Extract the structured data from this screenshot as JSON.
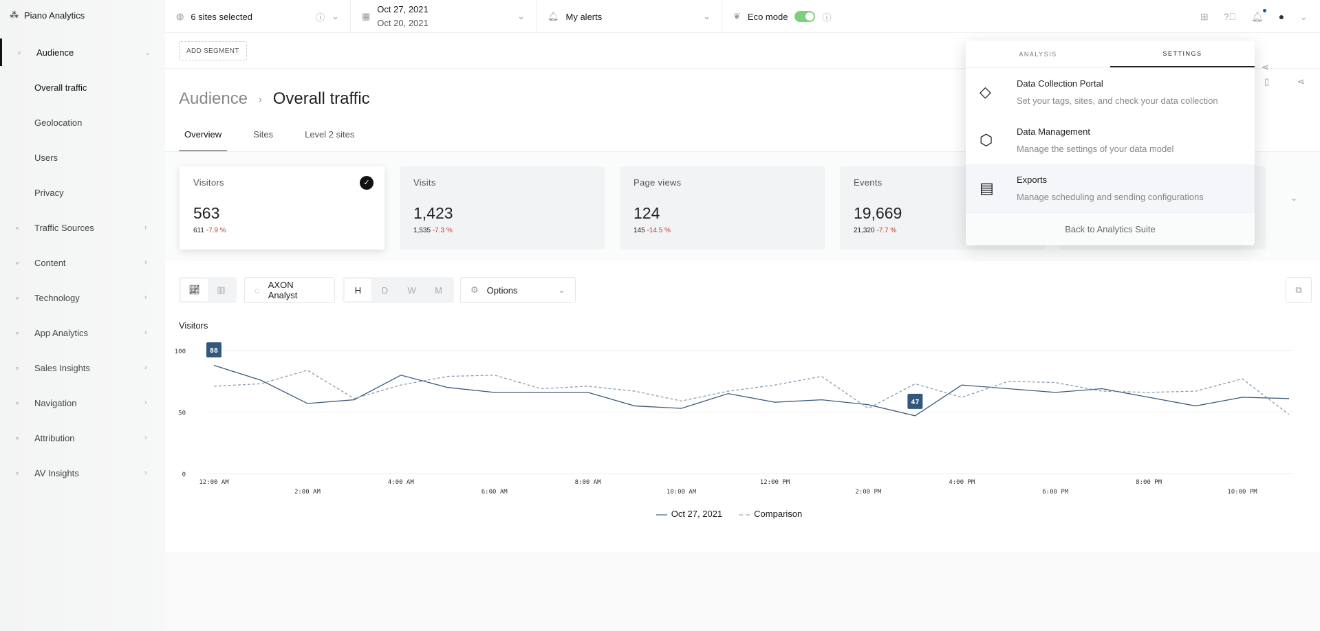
{
  "app": {
    "name": "Piano Analytics"
  },
  "topbar": {
    "sites": "6 sites selected",
    "date_main": "Oct 27, 2021",
    "date_compare": "Oct 20, 2021",
    "alerts": "My alerts",
    "eco_label": "Eco mode",
    "eco_on": true
  },
  "segment": {
    "add_label": "ADD SEGMENT"
  },
  "sidebar": {
    "items": [
      {
        "label": "Audience",
        "icon": "users-icon",
        "expanded": true
      },
      {
        "label": "Overall traffic",
        "sub": true,
        "active": true
      },
      {
        "label": "Geolocation",
        "sub": true
      },
      {
        "label": "Users",
        "sub": true
      },
      {
        "label": "Privacy",
        "sub": true
      },
      {
        "label": "Traffic Sources",
        "icon": "shuffle-icon"
      },
      {
        "label": "Content",
        "icon": "document-icon"
      },
      {
        "label": "Technology",
        "icon": "monitor-icon"
      },
      {
        "label": "App Analytics",
        "icon": "line-chart-icon"
      },
      {
        "label": "Sales Insights",
        "icon": "cart-icon"
      },
      {
        "label": "Navigation",
        "icon": "cursor-icon"
      },
      {
        "label": "Attribution",
        "icon": "bars-icon"
      },
      {
        "label": "AV Insights",
        "icon": "play-icon"
      }
    ]
  },
  "page": {
    "breadcrumb": "Audience",
    "title": "Overall traffic",
    "tabs": [
      "Overview",
      "Sites",
      "Level 2 sites"
    ]
  },
  "kpis": [
    {
      "name": "Visitors",
      "value": "563",
      "prev": "611",
      "change": "-7.9 %",
      "selected": true
    },
    {
      "name": "Visits",
      "value": "1,423",
      "prev": "1,535",
      "change": "-7.3 %"
    },
    {
      "name": "Page views",
      "value": "124",
      "prev": "145",
      "change": "-14.5 %"
    },
    {
      "name": "Events",
      "value": "19,669",
      "prev": "21,320",
      "change": "-7.7 %"
    }
  ],
  "toolbar": {
    "axon": "AXON Analyst",
    "granularity": [
      "H",
      "D",
      "W",
      "M"
    ],
    "options": "Options"
  },
  "dropdown": {
    "tabs": [
      "ANALYSIS",
      "SETTINGS"
    ],
    "active_tab": "SETTINGS",
    "items": [
      {
        "title": "Data Collection Portal",
        "desc": "Set your tags, sites, and check your data collection",
        "icon": "tag-icon"
      },
      {
        "title": "Data Management",
        "desc": "Manage the settings of your data model",
        "icon": "hexagon-nut-icon"
      },
      {
        "title": "Exports",
        "desc": "Manage scheduling and sending configurations",
        "icon": "report-chart-icon"
      }
    ],
    "footer": "Back to Analytics Suite"
  },
  "colors": {
    "series": "#3d5a7a",
    "accent_toggle": "#7bd07b",
    "negative": "#c0392b"
  },
  "chart_data": {
    "type": "line",
    "title": "Visitors",
    "ylim": [
      0,
      100
    ],
    "yticks": [
      0,
      50,
      100
    ],
    "grid": true,
    "legend": "bottom",
    "x": [
      "12:00 AM",
      "1:00 AM",
      "2:00 AM",
      "3:00 AM",
      "4:00 AM",
      "5:00 AM",
      "6:00 AM",
      "7:00 AM",
      "8:00 AM",
      "9:00 AM",
      "10:00 AM",
      "11:00 AM",
      "12:00 PM",
      "1:00 PM",
      "2:00 PM",
      "3:00 PM",
      "4:00 PM",
      "5:00 PM",
      "6:00 PM",
      "7:00 PM",
      "8:00 PM",
      "9:00 PM",
      "10:00 PM",
      "11:00 PM"
    ],
    "xtick_labels": [
      "12:00 AM",
      "2:00 AM",
      "4:00 AM",
      "6:00 AM",
      "8:00 AM",
      "10:00 AM",
      "12:00 PM",
      "2:00 PM",
      "4:00 PM",
      "6:00 PM",
      "8:00 PM",
      "10:00 PM"
    ],
    "series": [
      {
        "name": "Oct 27, 2021",
        "style": "solid",
        "values": [
          88,
          76,
          57,
          60,
          80,
          70,
          66,
          66,
          66,
          55,
          53,
          65,
          58,
          60,
          56,
          47,
          72,
          69,
          66,
          69,
          62,
          55,
          62,
          61
        ]
      },
      {
        "name": "Comparison",
        "style": "dashed",
        "values": [
          71,
          73,
          84,
          61,
          72,
          79,
          80,
          69,
          71,
          67,
          59,
          67,
          72,
          79,
          53,
          73,
          62,
          75,
          74,
          67,
          66,
          67,
          77,
          48
        ]
      }
    ],
    "annotations": [
      {
        "x": "12:00 AM",
        "label": "88"
      },
      {
        "x": "3:00 PM",
        "label": "47"
      }
    ]
  }
}
